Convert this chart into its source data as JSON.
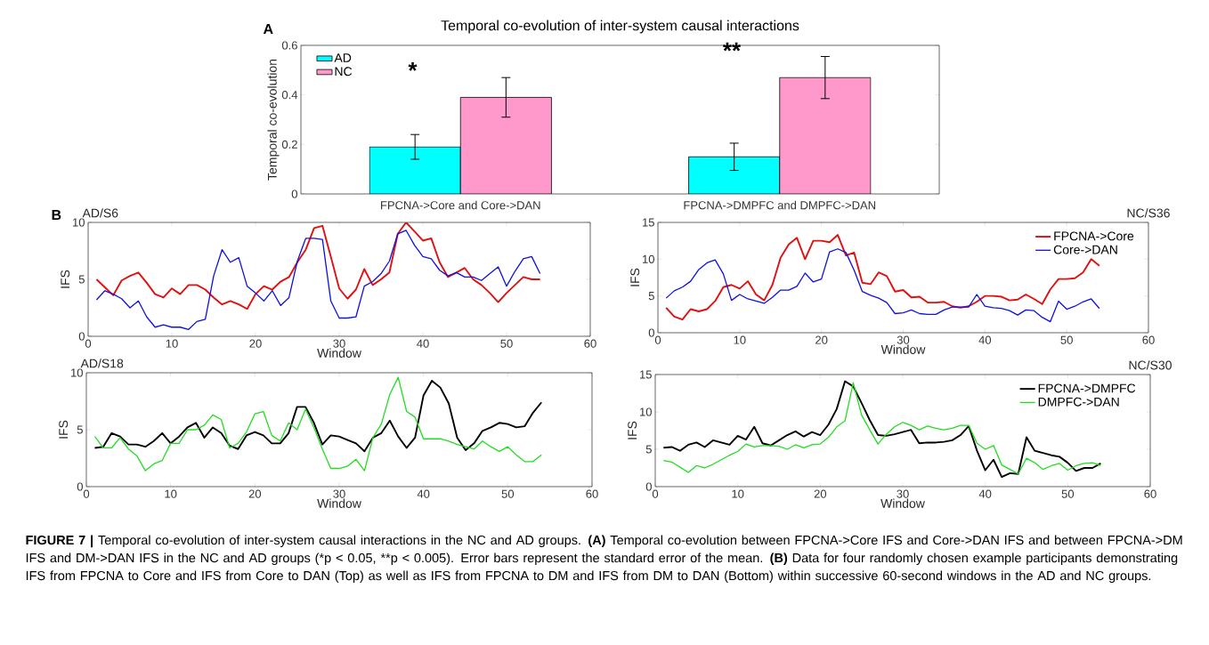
{
  "chart_data": [
    {
      "type": "bar",
      "title": "Temporal co-evolution of inter-system causal interactions",
      "ylabel": "Temporal co-evolution",
      "categories": [
        "FPCNA->Core and Core->DAN",
        "FPCNA->DMPFC and DMPFC->DAN"
      ],
      "series": [
        {
          "name": "AD",
          "color": "#00ffff",
          "values": [
            0.19,
            0.15
          ],
          "errors": [
            0.05,
            0.055
          ]
        },
        {
          "name": "NC",
          "color": "#ff99cc",
          "values": [
            0.39,
            0.47
          ],
          "errors": [
            0.08,
            0.085
          ]
        }
      ],
      "ylim": [
        0,
        0.6
      ],
      "yticks": [
        0,
        0.2,
        0.4,
        0.6
      ],
      "legend": "top left",
      "annotations": [
        "A",
        "*",
        "**",
        "**FIGURE 7 |** Temporal co-evolution of inter-system causal interactions in the NC and AD groups. **(A)** Temporal co-evolution between FPCNA->Core IFS and Core->DAN IFS and between FPCNA->DM IFS and DM->DAN IFS in the NC and AD groups (*p < 0.05,",
        "**p < 0.005). Error bars represent the standard error of the mean.",
        "**(B)** Data for four randomly chosen example participants demonstrating IFS from FPCNA to Core and IFS from Core to DAN (Top) as well as IFS from FPCNA to DM and IFS from DM to DAN (Bottom) within successive 60-second windows in the AD and NC groups."
      ]
    },
    {
      "type": "line",
      "title": "AD/S6",
      "xlabel": "Window",
      "ylabel": "IFS",
      "x": [
        1,
        2,
        3,
        4,
        5,
        6,
        7,
        8,
        9,
        10,
        11,
        12,
        13,
        14,
        15,
        16,
        17,
        18,
        19,
        20,
        21,
        22,
        23,
        24,
        25,
        26,
        27,
        28,
        29,
        30,
        31,
        32,
        33,
        34,
        35,
        36,
        37,
        38,
        39,
        40,
        41,
        42,
        43,
        44,
        45,
        46,
        47,
        48,
        49,
        50,
        51,
        52,
        53,
        54
      ],
      "series": [
        {
          "color": "#e01010",
          "values": [
            5.0,
            4.3,
            3.6,
            4.9,
            5.3,
            5.6,
            4.7,
            3.7,
            3.4,
            4.2,
            3.7,
            4.5,
            4.5,
            4.1,
            3.4,
            2.8,
            3.1,
            2.8,
            2.4,
            3.7,
            4.4,
            4.1,
            4.8,
            5.2,
            6.5,
            7.6,
            9.5,
            9.7,
            7.0,
            4.2,
            3.3,
            4.1,
            5.9,
            4.5,
            5.0,
            5.6,
            9.0,
            10.0,
            9.2,
            8.4,
            8.6,
            6.5,
            5.2,
            5.6,
            6.0,
            5.0,
            4.5,
            3.8,
            3.0,
            3.8,
            4.5,
            5.2,
            5.0,
            5.0
          ]
        },
        {
          "color": "#1010e0",
          "values": [
            3.2,
            4.0,
            3.7,
            3.3,
            2.5,
            3.1,
            1.7,
            0.8,
            1.0,
            0.8,
            0.8,
            0.6,
            1.3,
            1.5,
            5.3,
            7.6,
            6.5,
            6.9,
            4.4,
            3.8,
            3.1,
            4.0,
            2.7,
            3.4,
            6.6,
            8.6,
            8.6,
            8.5,
            3.1,
            1.6,
            1.6,
            1.7,
            4.4,
            4.8,
            5.5,
            6.6,
            9.0,
            9.3,
            8.0,
            7.0,
            6.8,
            5.8,
            5.3,
            5.6,
            5.2,
            5.2,
            4.9,
            5.5,
            6.1,
            4.4,
            5.7,
            6.8,
            7.0,
            5.5
          ]
        }
      ],
      "xlim": [
        0,
        60
      ],
      "xticks": [
        0,
        10,
        20,
        30,
        40,
        50,
        60
      ],
      "ylim": [
        0,
        10
      ],
      "yticks": [
        0,
        5,
        10
      ],
      "annotations": [
        "B"
      ]
    },
    {
      "type": "line",
      "title": "NC/S36",
      "xlabel": "Window",
      "ylabel": "IFS",
      "x": [
        1,
        2,
        3,
        4,
        5,
        6,
        7,
        8,
        9,
        10,
        11,
        12,
        13,
        14,
        15,
        16,
        17,
        18,
        19,
        20,
        21,
        22,
        23,
        24,
        25,
        26,
        27,
        28,
        29,
        30,
        31,
        32,
        33,
        34,
        35,
        36,
        37,
        38,
        39,
        40,
        41,
        42,
        43,
        44,
        45,
        46,
        47,
        48,
        49,
        50,
        51,
        52,
        53,
        54
      ],
      "series": [
        {
          "name": "FPCNA->Core",
          "color": "#e01010",
          "values": [
            3.4,
            2.2,
            1.8,
            3.2,
            2.9,
            3.2,
            4.3,
            6.2,
            6.5,
            6.0,
            7.0,
            5.2,
            4.4,
            6.5,
            10.2,
            12.0,
            12.9,
            10.0,
            12.5,
            12.5,
            12.3,
            13.3,
            10.5,
            10.9,
            6.8,
            6.6,
            8.2,
            7.7,
            5.6,
            5.8,
            4.8,
            4.9,
            4.1,
            4.1,
            4.2,
            3.6,
            3.4,
            3.6,
            4.2,
            5.0,
            5.0,
            4.9,
            4.4,
            4.5,
            5.2,
            4.6,
            3.9,
            5.9,
            7.3,
            7.3,
            7.4,
            8.2,
            10.0,
            9.1
          ]
        },
        {
          "name": "Core->DAN",
          "color": "#1010e0",
          "values": [
            4.7,
            5.7,
            6.2,
            7.0,
            8.6,
            9.5,
            9.9,
            8.0,
            4.4,
            5.2,
            4.6,
            4.3,
            4.0,
            4.8,
            5.8,
            5.8,
            6.3,
            8.1,
            6.9,
            7.3,
            11.0,
            11.4,
            10.9,
            8.5,
            5.6,
            5.1,
            4.7,
            4.1,
            2.6,
            2.7,
            3.1,
            2.6,
            2.5,
            2.5,
            3.1,
            3.5,
            3.5,
            3.5,
            5.2,
            3.6,
            3.4,
            3.3,
            3.0,
            2.4,
            3.1,
            3.0,
            2.1,
            1.5,
            4.3,
            3.2,
            3.6,
            4.2,
            4.6,
            3.3
          ]
        }
      ],
      "xlim": [
        0,
        60
      ],
      "xticks": [
        0,
        10,
        20,
        30,
        40,
        50,
        60
      ],
      "ylim": [
        0,
        15
      ],
      "yticks": [
        0,
        5,
        10,
        15
      ],
      "legend": "top right"
    },
    {
      "type": "line",
      "title": "AD/S18",
      "xlabel": "Window",
      "ylabel": "IFS",
      "x": [
        1,
        2,
        3,
        4,
        5,
        6,
        7,
        8,
        9,
        10,
        11,
        12,
        13,
        14,
        15,
        16,
        17,
        18,
        19,
        20,
        21,
        22,
        23,
        24,
        25,
        26,
        27,
        28,
        29,
        30,
        31,
        32,
        33,
        34,
        35,
        36,
        37,
        38,
        39,
        40,
        41,
        42,
        43,
        44,
        45,
        46,
        47,
        48,
        49,
        50,
        51,
        52,
        53,
        54
      ],
      "series": [
        {
          "color": "#000000",
          "values": [
            3.4,
            3.5,
            4.7,
            4.4,
            3.7,
            3.7,
            3.5,
            4.0,
            4.7,
            3.8,
            4.4,
            5.2,
            5.6,
            4.3,
            5.2,
            4.7,
            3.6,
            3.3,
            4.5,
            4.8,
            4.5,
            3.8,
            3.8,
            4.7,
            7.0,
            7.0,
            5.6,
            3.7,
            4.5,
            4.4,
            4.1,
            3.8,
            3.1,
            4.3,
            4.7,
            5.8,
            4.4,
            3.4,
            4.3,
            8.0,
            9.3,
            8.7,
            7.3,
            4.3,
            3.2,
            3.8,
            4.9,
            5.2,
            5.6,
            5.5,
            5.2,
            5.3,
            6.5,
            7.4
          ]
        },
        {
          "color": "#22dd22",
          "values": [
            4.4,
            3.4,
            3.4,
            4.3,
            3.3,
            2.7,
            1.4,
            2.0,
            2.3,
            3.8,
            3.8,
            5.0,
            5.0,
            5.4,
            6.3,
            5.9,
            3.4,
            3.8,
            4.8,
            6.4,
            6.6,
            4.5,
            4.0,
            5.6,
            5.0,
            6.8,
            5.2,
            3.3,
            1.6,
            1.6,
            1.8,
            2.4,
            1.4,
            4.3,
            5.5,
            8.1,
            9.6,
            6.6,
            6.1,
            4.2,
            4.2,
            4.2,
            4.0,
            3.7,
            3.5,
            3.3,
            4.0,
            3.5,
            3.1,
            3.5,
            2.8,
            2.2,
            2.2,
            2.8
          ]
        }
      ],
      "xlim": [
        0,
        60
      ],
      "xticks": [
        0,
        10,
        20,
        30,
        40,
        50,
        60
      ],
      "ylim": [
        0,
        10
      ],
      "yticks": [
        0,
        5,
        10
      ]
    },
    {
      "type": "line",
      "title": "NC/S30",
      "xlabel": "Window",
      "ylabel": "IFS",
      "x": [
        1,
        2,
        3,
        4,
        5,
        6,
        7,
        8,
        9,
        10,
        11,
        12,
        13,
        14,
        15,
        16,
        17,
        18,
        19,
        20,
        21,
        22,
        23,
        24,
        25,
        26,
        27,
        28,
        29,
        30,
        31,
        32,
        33,
        34,
        35,
        36,
        37,
        38,
        39,
        40,
        41,
        42,
        43,
        44,
        45,
        46,
        47,
        48,
        49,
        50,
        51,
        52,
        53,
        54
      ],
      "series": [
        {
          "name": "FPCNA->DMPFC",
          "color": "#000000",
          "values": [
            5.2,
            5.3,
            4.8,
            5.6,
            5.9,
            5.3,
            6.2,
            5.9,
            5.6,
            6.8,
            6.3,
            8.0,
            5.8,
            5.5,
            6.2,
            6.9,
            7.4,
            6.7,
            7.3,
            6.9,
            8.3,
            10.4,
            14.1,
            13.4,
            11.2,
            8.9,
            6.9,
            6.8,
            7.0,
            7.3,
            7.6,
            5.8,
            5.9,
            5.9,
            6.0,
            6.2,
            6.9,
            8.1,
            4.8,
            2.2,
            3.6,
            1.3,
            1.8,
            1.7,
            6.6,
            4.8,
            4.5,
            4.2,
            4.0,
            3.2,
            2.1,
            2.5,
            2.5,
            3.1
          ]
        },
        {
          "name": "DMPFC->DAN",
          "color": "#22dd22",
          "values": [
            3.5,
            3.3,
            2.6,
            1.9,
            2.8,
            2.5,
            3.0,
            3.6,
            4.2,
            4.7,
            5.7,
            5.3,
            5.5,
            5.5,
            5.4,
            5.0,
            5.6,
            5.2,
            5.6,
            5.7,
            6.6,
            8.0,
            8.8,
            13.9,
            9.6,
            7.6,
            5.7,
            7.0,
            8.0,
            8.6,
            8.2,
            7.6,
            8.1,
            7.8,
            7.6,
            7.8,
            8.2,
            8.2,
            5.8,
            5.0,
            5.5,
            2.9,
            2.3,
            1.7,
            3.8,
            3.2,
            2.3,
            2.8,
            3.1,
            2.2,
            2.8,
            3.1,
            3.2,
            2.8
          ]
        }
      ],
      "xlim": [
        0,
        60
      ],
      "xticks": [
        0,
        10,
        20,
        30,
        40,
        50,
        60
      ],
      "ylim": [
        0,
        15
      ],
      "yticks": [
        0,
        5,
        10,
        15
      ],
      "legend": "top right"
    }
  ]
}
